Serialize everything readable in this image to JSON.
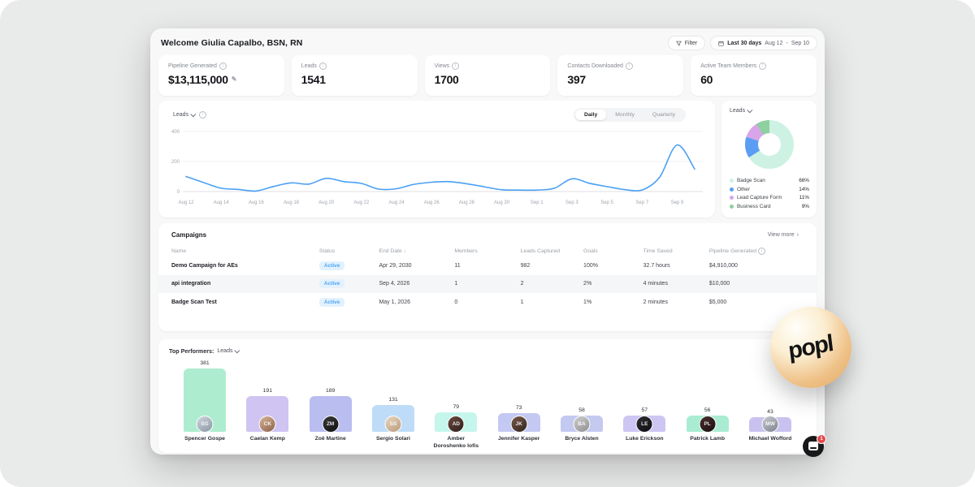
{
  "header": {
    "welcome": "Welcome Giulia Capalbo, BSN, RN",
    "filter": {
      "label": "Filter"
    },
    "date_range": {
      "preset": "Last 30 days",
      "start": "Aug 12",
      "separator": "-",
      "end": "Sep 10"
    }
  },
  "stats": [
    {
      "label": "Pipeline Generated",
      "value": "$13,115,000",
      "editable": true
    },
    {
      "label": "Leads",
      "value": "1541",
      "editable": false
    },
    {
      "label": "Views",
      "value": "1700",
      "editable": false
    },
    {
      "label": "Contacts Downloaded",
      "value": "397",
      "editable": false
    },
    {
      "label": "Active Team Members",
      "value": "60",
      "editable": false
    }
  ],
  "trend_chart": {
    "metric_label": "Leads",
    "tabs": [
      "Daily",
      "Monthly",
      "Quarterly"
    ],
    "active_tab": "Daily",
    "chart_data": {
      "type": "line",
      "x": [
        "Aug 12",
        "Aug 13",
        "Aug 14",
        "Aug 15",
        "Aug 16",
        "Aug 17",
        "Aug 18",
        "Aug 19",
        "Aug 20",
        "Aug 21",
        "Aug 22",
        "Aug 23",
        "Aug 24",
        "Aug 25",
        "Aug 26",
        "Aug 27",
        "Aug 28",
        "Aug 29",
        "Aug 30",
        "Aug 31",
        "Sep 1",
        "Sep 2",
        "Sep 3",
        "Sep 4",
        "Sep 5",
        "Sep 6",
        "Sep 7",
        "Sep 8",
        "Sep 9",
        "Sep 10"
      ],
      "values": [
        100,
        60,
        22,
        14,
        4,
        34,
        58,
        50,
        88,
        66,
        54,
        16,
        19,
        48,
        62,
        66,
        52,
        32,
        12,
        10,
        10,
        22,
        85,
        55,
        33,
        13,
        10,
        95,
        310,
        150
      ],
      "tick_labels": [
        "Aug 12",
        "Aug 14",
        "Aug 16",
        "Aug 18",
        "Aug 20",
        "Aug 22",
        "Aug 24",
        "Aug 26",
        "Aug 28",
        "Aug 30",
        "Sep 1",
        "Sep 3",
        "Sep 5",
        "Sep 7",
        "Sep 9"
      ],
      "yticks": [
        0,
        200,
        400
      ],
      "ylim": [
        0,
        400
      ],
      "line_color": "#4aa0f5",
      "grid": true
    }
  },
  "donut": {
    "metric_label": "Leads",
    "chart_data": {
      "type": "pie",
      "segments": [
        {
          "label": "Badge Scan",
          "value_pct": 66,
          "display": "66%",
          "color": "#cdf2e3"
        },
        {
          "label": "Other",
          "value_pct": 14,
          "display": "14%",
          "color": "#5c9df4"
        },
        {
          "label": "Lead Capture Form",
          "value_pct": 11,
          "display": "11%",
          "color": "#d7a6ea"
        },
        {
          "label": "Business Card",
          "value_pct": 9,
          "display": "9%",
          "color": "#8ed09f"
        }
      ],
      "legend_position": "bottom"
    }
  },
  "campaigns": {
    "title": "Campaigns",
    "view_more": "View more",
    "view_more_chevron": "›",
    "columns": [
      "Name",
      "Status",
      "End Date",
      "Members",
      "Leads Captured",
      "Goals",
      "Time Saved",
      "Pipeline Generated"
    ],
    "sorted_column": "End Date",
    "sort_arrow": "↓",
    "rows": [
      {
        "name": "Demo Campaign for AEs",
        "status": "Active",
        "end_date": "Apr 29, 2030",
        "members": "11",
        "leads_captured": "982",
        "goals": "100%",
        "time_saved": "32.7 hours",
        "pipeline_generated": "$4,910,000",
        "highlight": false
      },
      {
        "name": "api integration",
        "status": "Active",
        "end_date": "Sep 4, 2026",
        "members": "1",
        "leads_captured": "2",
        "goals": "2%",
        "time_saved": "4 minutes",
        "pipeline_generated": "$10,000",
        "highlight": true
      },
      {
        "name": "Badge Scan Test",
        "status": "Active",
        "end_date": "May 1, 2026",
        "members": "0",
        "leads_captured": "1",
        "goals": "1%",
        "time_saved": "2 minutes",
        "pipeline_generated": "$5,000",
        "highlight": false
      }
    ]
  },
  "top_performers": {
    "title": "Top Performers:",
    "metric_label": "Leads",
    "chart_data": {
      "type": "bar",
      "performers": [
        {
          "name": "Spencer Gospe",
          "value": 381,
          "color": "#aeeccf"
        },
        {
          "name": "Caelan Kemp",
          "value": 191,
          "color": "#cfc4f2"
        },
        {
          "name": "Zoë Martine",
          "value": 189,
          "color": "#b9bdf0"
        },
        {
          "name": "Sergio Solari",
          "value": 131,
          "color": "#bedcf8"
        },
        {
          "name": "Amber Doroshenko Iofis",
          "value": 79,
          "color": "#c5f6ec"
        },
        {
          "name": "Jennifer Kasper",
          "value": 73,
          "color": "#c3c9f2"
        },
        {
          "name": "Bryce Alsten",
          "value": 58,
          "color": "#c4c9f0"
        },
        {
          "name": "Luke Erickson",
          "value": 57,
          "color": "#cdc5f2"
        },
        {
          "name": "Patrick Lamb",
          "value": 56,
          "color": "#a9ecd3"
        },
        {
          "name": "Michael Wofford",
          "value": 43,
          "color": "#c9c2f0"
        }
      ]
    }
  },
  "branding": {
    "logo_text": "popl"
  },
  "chat": {
    "badge": "1"
  }
}
